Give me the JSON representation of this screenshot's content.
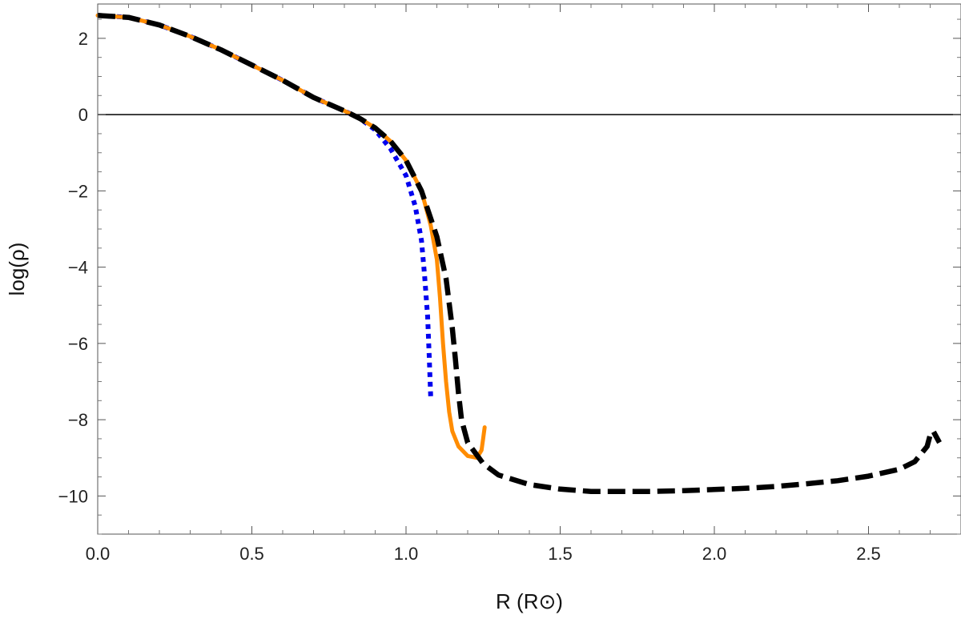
{
  "chart_data": {
    "type": "line",
    "title": "",
    "xlabel": "R (R⊙)",
    "ylabel": "log(ρ)",
    "xlim": [
      0,
      2.8
    ],
    "ylim": [
      -11,
      2.9
    ],
    "grid": false,
    "x_ticks": [
      0.0,
      0.5,
      1.0,
      1.5,
      2.0,
      2.5
    ],
    "x_tick_labels": [
      "0.0",
      "0.5",
      "1.0",
      "1.5",
      "2.0",
      "2.5"
    ],
    "y_ticks": [
      2,
      0,
      -2,
      -4,
      -6,
      -8,
      -10
    ],
    "y_tick_labels": [
      "2",
      "0",
      "−2",
      "−4",
      "−6",
      "−8",
      "−10"
    ],
    "reference_line": {
      "y": 0,
      "color": "#000000"
    },
    "series": [
      {
        "style": "dotted",
        "color": "#0000ee",
        "x": [
          0.0,
          0.1,
          0.2,
          0.3,
          0.4,
          0.5,
          0.6,
          0.7,
          0.8,
          0.85,
          0.9,
          0.95,
          1.0,
          1.03,
          1.05,
          1.06,
          1.07,
          1.075,
          1.08
        ],
        "y": [
          2.6,
          2.55,
          2.35,
          2.05,
          1.7,
          1.3,
          0.9,
          0.45,
          0.1,
          -0.1,
          -0.4,
          -0.9,
          -1.6,
          -2.4,
          -3.3,
          -4.2,
          -5.3,
          -6.3,
          -7.4
        ]
      },
      {
        "style": "solid",
        "color": "#ff8c00",
        "x": [
          0.0,
          0.1,
          0.2,
          0.3,
          0.4,
          0.5,
          0.6,
          0.7,
          0.8,
          0.85,
          0.9,
          0.95,
          1.0,
          1.05,
          1.08,
          1.1,
          1.11,
          1.12,
          1.13,
          1.14,
          1.15,
          1.17,
          1.2,
          1.23,
          1.245,
          1.25,
          1.255
        ],
        "y": [
          2.6,
          2.55,
          2.35,
          2.05,
          1.7,
          1.3,
          0.9,
          0.45,
          0.1,
          -0.1,
          -0.35,
          -0.7,
          -1.2,
          -2.0,
          -2.9,
          -3.8,
          -4.8,
          -6.0,
          -7.0,
          -7.8,
          -8.3,
          -8.7,
          -8.95,
          -9.0,
          -8.8,
          -8.5,
          -8.2
        ]
      },
      {
        "style": "dashed",
        "color": "#000000",
        "x": [
          0.0,
          0.1,
          0.2,
          0.3,
          0.4,
          0.5,
          0.6,
          0.7,
          0.8,
          0.85,
          0.9,
          0.95,
          1.0,
          1.05,
          1.1,
          1.13,
          1.15,
          1.16,
          1.17,
          1.18,
          1.2,
          1.25,
          1.3,
          1.4,
          1.5,
          1.6,
          1.7,
          1.8,
          1.9,
          2.0,
          2.1,
          2.2,
          2.3,
          2.4,
          2.5,
          2.6,
          2.65,
          2.69,
          2.7,
          2.71,
          2.72,
          2.73
        ],
        "y": [
          2.6,
          2.55,
          2.35,
          2.05,
          1.7,
          1.3,
          0.9,
          0.45,
          0.1,
          -0.1,
          -0.35,
          -0.7,
          -1.2,
          -2.0,
          -3.2,
          -4.3,
          -5.6,
          -6.4,
          -7.3,
          -8.0,
          -8.6,
          -9.15,
          -9.45,
          -9.7,
          -9.82,
          -9.88,
          -9.88,
          -9.88,
          -9.86,
          -9.83,
          -9.8,
          -9.75,
          -9.68,
          -9.6,
          -9.48,
          -9.3,
          -9.1,
          -8.7,
          -8.4,
          -8.3,
          -8.45,
          -8.6
        ]
      }
    ]
  }
}
